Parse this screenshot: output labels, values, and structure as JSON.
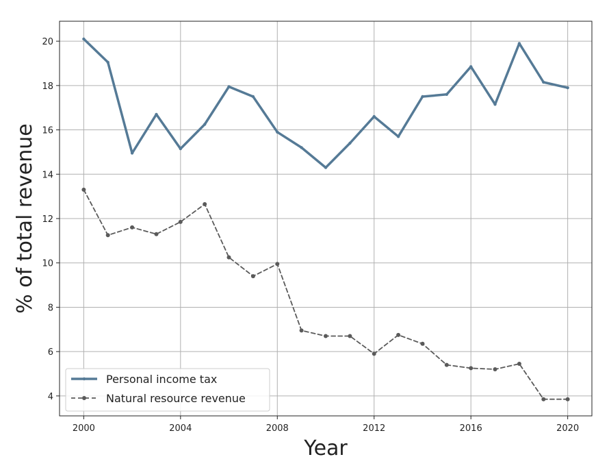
{
  "chart_data": {
    "type": "line",
    "xlabel": "Year",
    "ylabel": "% of total revenue",
    "xlim": [
      1999,
      2021
    ],
    "ylim": [
      3.1,
      20.9
    ],
    "x_ticks": [
      2000,
      2004,
      2008,
      2012,
      2016,
      2020
    ],
    "y_ticks": [
      4,
      6,
      8,
      10,
      12,
      14,
      16,
      18,
      20
    ],
    "grid": true,
    "legend_position": "lower-left",
    "x": [
      2000,
      2001,
      2002,
      2003,
      2004,
      2005,
      2006,
      2007,
      2008,
      2009,
      2010,
      2011,
      2012,
      2013,
      2014,
      2015,
      2016,
      2017,
      2018,
      2019,
      2020
    ],
    "series": [
      {
        "name": "Personal income tax",
        "color": "#557A96",
        "style": "solid",
        "values": [
          20.1,
          19.05,
          14.95,
          16.7,
          15.15,
          16.25,
          17.95,
          17.5,
          15.9,
          15.2,
          14.3,
          15.4,
          16.6,
          15.7,
          17.5,
          17.6,
          18.85,
          17.15,
          19.9,
          18.15,
          17.9
        ]
      },
      {
        "name": "Natural resource revenue",
        "color": "#5A5A5A",
        "style": "dashed",
        "values": [
          13.3,
          11.25,
          11.6,
          11.3,
          11.85,
          12.65,
          10.25,
          9.4,
          9.95,
          6.95,
          6.7,
          6.7,
          5.9,
          6.75,
          6.35,
          5.4,
          5.25,
          5.2,
          5.45,
          3.85,
          3.85
        ]
      }
    ]
  }
}
